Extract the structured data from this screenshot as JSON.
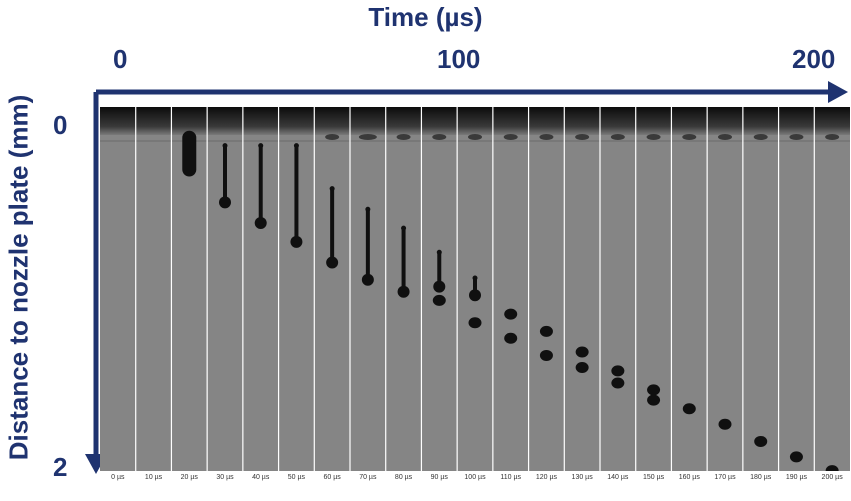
{
  "axis": {
    "x_title": "Time (µs)",
    "x_ticks": [
      "0",
      "100",
      "200"
    ],
    "y_title": "Distance to nozzle plate (mm)",
    "y_ticks": [
      "0",
      "2"
    ]
  },
  "colors": {
    "axis": "#1f3370",
    "frame_bg": "#8a8a8a",
    "fluid": "#101010"
  },
  "frames": [
    {
      "label": "0 µs",
      "drops": []
    },
    {
      "label": "10 µs",
      "drops": []
    },
    {
      "label": "20 µs",
      "drops": [
        {
          "shape": "blob",
          "y0": 0.08,
          "y1": 0.23
        }
      ]
    },
    {
      "label": "30 µs",
      "drops": [
        {
          "shape": "lig",
          "y0": 0.05,
          "y1": 0.38
        }
      ]
    },
    {
      "label": "40 µs",
      "drops": [
        {
          "shape": "lig",
          "y0": 0.05,
          "y1": 0.5
        }
      ]
    },
    {
      "label": "50 µs",
      "drops": [
        {
          "shape": "lig",
          "y0": 0.05,
          "y1": 0.61
        }
      ]
    },
    {
      "label": "60 µs",
      "drops": [
        {
          "shape": "lig",
          "y0": 0.3,
          "y1": 0.73
        }
      ]
    },
    {
      "label": "70 µs",
      "drops": [
        {
          "shape": "lig",
          "y0": 0.42,
          "y1": 0.83
        }
      ]
    },
    {
      "label": "80 µs",
      "drops": [
        {
          "shape": "lig",
          "y0": 0.53,
          "y1": 0.9
        }
      ]
    },
    {
      "label": "90 µs",
      "drops": [
        {
          "shape": "lig",
          "y0": 0.67,
          "y1": 0.87
        },
        {
          "shape": "dot",
          "y0": 0.95
        }
      ]
    },
    {
      "label": "100 µs",
      "drops": [
        {
          "shape": "lig",
          "y0": 0.82,
          "y1": 0.92
        },
        {
          "shape": "dot",
          "y0": 1.08
        }
      ]
    },
    {
      "label": "110 µs",
      "drops": [
        {
          "shape": "dot",
          "y0": 1.03
        },
        {
          "shape": "dot",
          "y0": 1.17
        }
      ]
    },
    {
      "label": "120 µs",
      "drops": [
        {
          "shape": "dot",
          "y0": 1.13
        },
        {
          "shape": "dot",
          "y0": 1.27
        }
      ]
    },
    {
      "label": "130 µs",
      "drops": [
        {
          "shape": "dot",
          "y0": 1.25
        },
        {
          "shape": "dot",
          "y0": 1.34
        }
      ]
    },
    {
      "label": "140 µs",
      "drops": [
        {
          "shape": "dot",
          "y0": 1.36
        },
        {
          "shape": "dot",
          "y0": 1.43
        }
      ]
    },
    {
      "label": "150 µs",
      "drops": [
        {
          "shape": "dot",
          "y0": 1.47
        },
        {
          "shape": "dot",
          "y0": 1.53
        }
      ]
    },
    {
      "label": "160 µs",
      "drops": [
        {
          "shape": "dot",
          "y0": 1.58
        }
      ]
    },
    {
      "label": "170 µs",
      "drops": [
        {
          "shape": "dot",
          "y0": 1.67
        }
      ]
    },
    {
      "label": "180 µs",
      "drops": [
        {
          "shape": "dot",
          "y0": 1.77
        }
      ]
    },
    {
      "label": "190 µs",
      "drops": [
        {
          "shape": "dot",
          "y0": 1.86
        }
      ]
    },
    {
      "label": "200 µs",
      "drops": [
        {
          "shape": "dot",
          "y0": 1.94
        }
      ]
    }
  ]
}
